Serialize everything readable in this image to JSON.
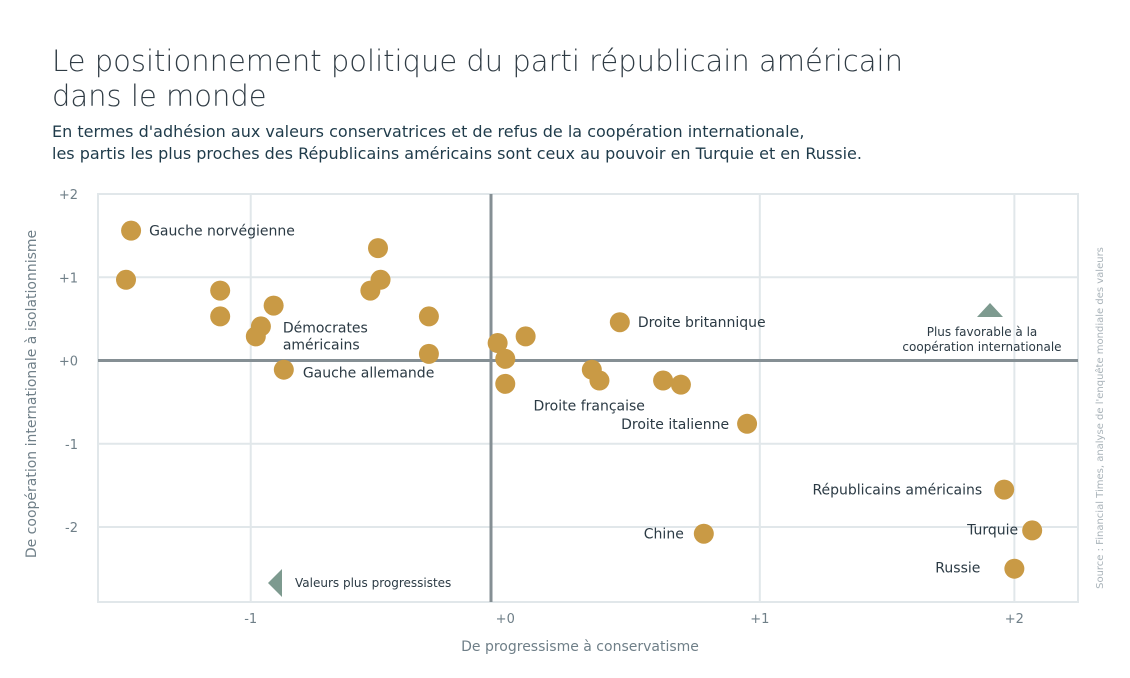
{
  "title": "Le positionnement politique du parti républicain américain\ndans le monde",
  "subtitle": "En termes d'adhésion aux valeurs conservatrices et de refus de la coopération internationale,\nles partis les plus proches des Républicains américains sont ceux au pouvoir en Turquie et en Russie.",
  "source": "Source : Financial Times, analyse de l'enquête mondiale des valeurs",
  "colors": {
    "point": "#c99a45",
    "grid": "#e1e7ea",
    "axis": "#858f94",
    "arrow": "#7d9a8f"
  },
  "annotations": {
    "cooperation_line1": "Plus favorable à la",
    "cooperation_line2": "coopération internationale",
    "progressive": "Valeurs plus progressistes"
  },
  "chart_data": {
    "type": "scatter",
    "xlabel": "De progressisme à conservatisme",
    "ylabel": "De coopération internationale à isolationnisme",
    "xlim": [
      -1.6,
      2.25
    ],
    "ylim": [
      -2.9,
      2.0
    ],
    "x_ticks": [
      {
        "value": -1,
        "label": "-1"
      },
      {
        "value": 0,
        "label": "+0"
      },
      {
        "value": 1,
        "label": "+1"
      },
      {
        "value": 2,
        "label": "+2"
      }
    ],
    "y_ticks": [
      {
        "value": 2,
        "label": "+2"
      },
      {
        "value": 1,
        "label": "+1"
      },
      {
        "value": 0,
        "label": "+0"
      },
      {
        "value": -1,
        "label": "-1"
      },
      {
        "value": -2,
        "label": "-2"
      }
    ],
    "grid": true,
    "points": [
      {
        "x": -1.47,
        "y": 1.56,
        "label": "Gauche norvégienne"
      },
      {
        "x": -1.49,
        "y": 0.97
      },
      {
        "x": -1.12,
        "y": 0.84
      },
      {
        "x": -1.12,
        "y": 0.53
      },
      {
        "x": -0.91,
        "y": 0.66
      },
      {
        "x": -0.96,
        "y": 0.41
      },
      {
        "x": -0.98,
        "y": 0.29,
        "label": "Démocrates américains"
      },
      {
        "x": -0.87,
        "y": -0.11,
        "label": "Gauche allemande"
      },
      {
        "x": -0.5,
        "y": 1.35
      },
      {
        "x": -0.49,
        "y": 0.97
      },
      {
        "x": -0.53,
        "y": 0.84
      },
      {
        "x": -0.3,
        "y": 0.53
      },
      {
        "x": -0.3,
        "y": 0.08
      },
      {
        "x": -0.03,
        "y": 0.21
      },
      {
        "x": 0.08,
        "y": 0.29
      },
      {
        "x": 0.0,
        "y": 0.02
      },
      {
        "x": 0.0,
        "y": -0.28
      },
      {
        "x": 0.34,
        "y": -0.11
      },
      {
        "x": 0.37,
        "y": -0.24,
        "label": "Droite française"
      },
      {
        "x": 0.45,
        "y": 0.46,
        "label": "Droite britannique"
      },
      {
        "x": 0.62,
        "y": -0.24
      },
      {
        "x": 0.69,
        "y": -0.29
      },
      {
        "x": 0.95,
        "y": -0.76,
        "label": "Droite italienne"
      },
      {
        "x": 0.78,
        "y": -2.08,
        "label": "Chine"
      },
      {
        "x": 1.96,
        "y": -1.55,
        "label": "Républicains américains"
      },
      {
        "x": 2.07,
        "y": -2.04,
        "label": "Turquie"
      },
      {
        "x": 2.0,
        "y": -2.5,
        "label": "Russie"
      }
    ]
  }
}
